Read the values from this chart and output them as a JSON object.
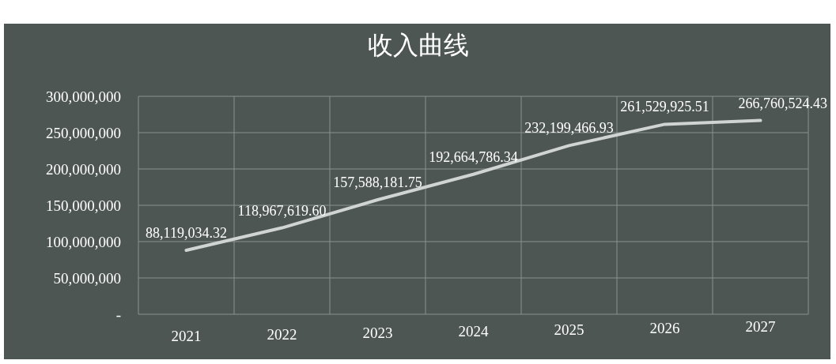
{
  "chart_data": {
    "type": "line",
    "title": "收入曲线",
    "categories": [
      "2021",
      "2022",
      "2023",
      "2024",
      "2025",
      "2026",
      "2027"
    ],
    "values": [
      88119034.32,
      118967619.6,
      157588181.75,
      192664786.34,
      232199466.93,
      261529925.51,
      266760524.43
    ],
    "value_labels": [
      "88,119,034.32",
      "118,967,619.60",
      "157,588,181.75",
      "192,664,786.34",
      "232,199,466.93",
      "261,529,925.51",
      "266,760,524.43"
    ],
    "color": "#d0d4d2",
    "ylim": [
      0,
      300000000
    ],
    "yticks": [
      {
        "value": 0,
        "label": "-"
      },
      {
        "value": 50000000,
        "label": "50,000,000"
      },
      {
        "value": 100000000,
        "label": "100,000,000"
      },
      {
        "value": 150000000,
        "label": "150,000,000"
      },
      {
        "value": 200000000,
        "label": "200,000,000"
      },
      {
        "value": 250000000,
        "label": "250,000,000"
      },
      {
        "value": 300000000,
        "label": "300,000,000"
      }
    ],
    "grid": true,
    "marker": "none",
    "line_style": "solid"
  }
}
